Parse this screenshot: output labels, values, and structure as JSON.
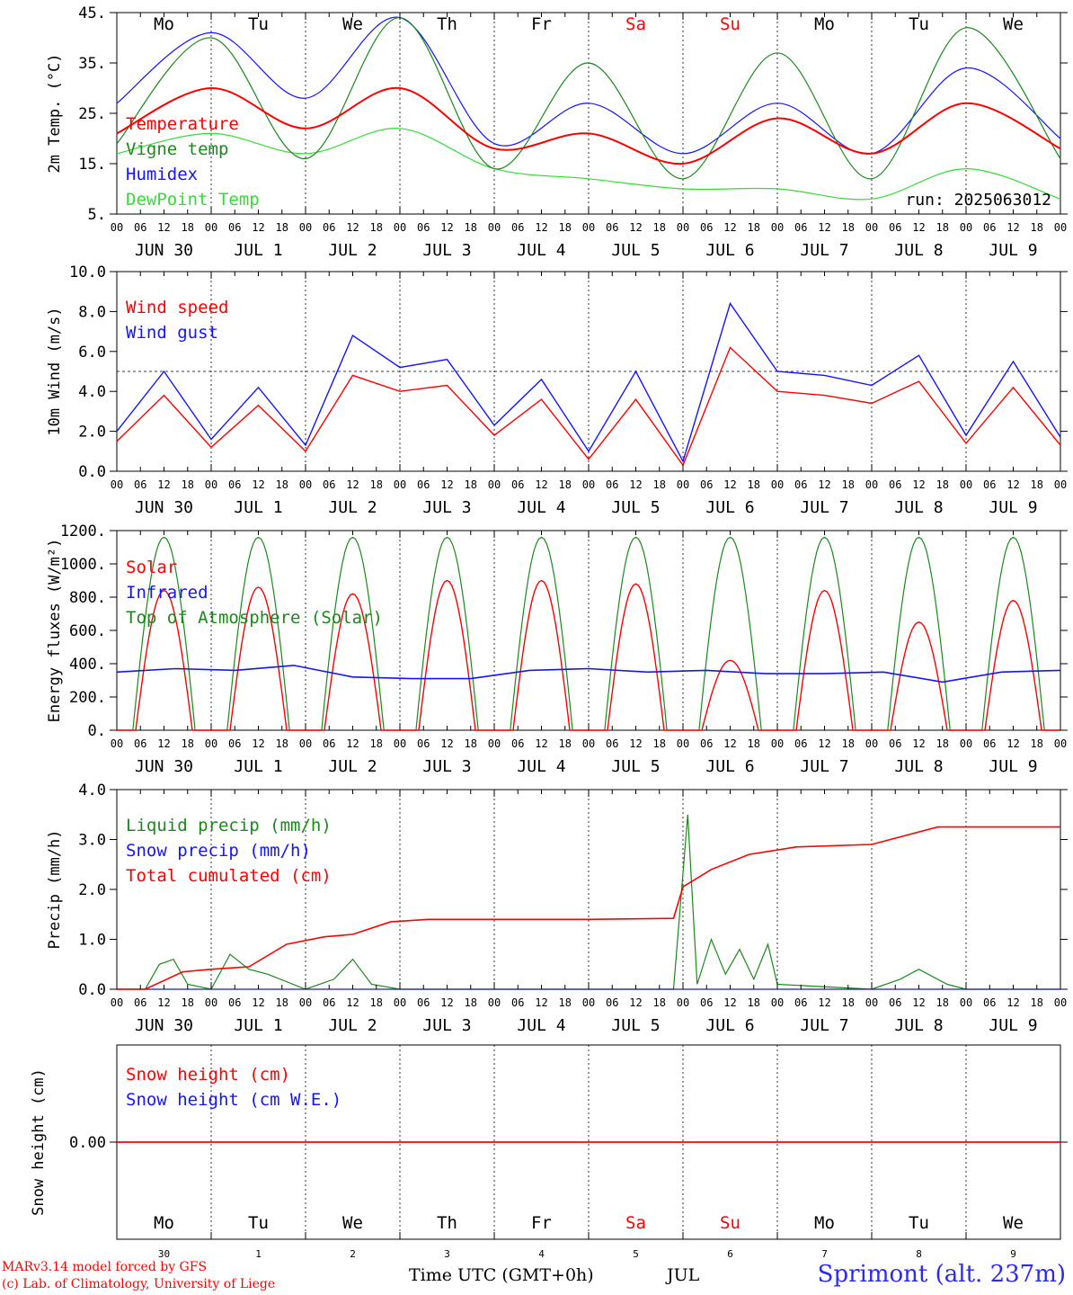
{
  "chart_data": [
    {
      "id": "temp",
      "type": "line",
      "ylabel": "2m Temp. (°C)",
      "ylim": [
        5,
        45
      ],
      "yticks": [
        "45.",
        "35.",
        "25.",
        "15.",
        "5."
      ],
      "ytick_values": [
        45,
        35,
        25,
        15,
        5
      ],
      "legend": [
        "Temperature",
        "Vigne temp",
        "Humidex",
        "DewPoint Temp"
      ],
      "annotation": "run: 2025063012",
      "day_labels": [
        "Mo",
        "Tu",
        "We",
        "Th",
        "Fr",
        "Sa",
        "Su",
        "Mo",
        "Tu",
        "We"
      ],
      "series": [
        {
          "name": "Temperature",
          "color": "#ff0000",
          "x": [
            0,
            1,
            2,
            3,
            4,
            5,
            6,
            7,
            8,
            9,
            10
          ],
          "values": [
            21,
            30,
            22,
            30,
            18,
            21,
            15,
            24,
            17,
            27,
            18
          ]
        },
        {
          "name": "Vigne temp",
          "color": "#1a8a1a",
          "x": [
            0,
            1,
            2,
            3,
            4,
            5,
            6,
            7,
            8,
            9,
            10
          ],
          "values": [
            19,
            40,
            16,
            44,
            14,
            35,
            12,
            37,
            12,
            42,
            16
          ]
        },
        {
          "name": "Humidex",
          "color": "#1414ff",
          "x": [
            0,
            1,
            2,
            3,
            4,
            5,
            6,
            7,
            8,
            9,
            10
          ],
          "values": [
            27,
            41,
            28,
            44,
            19,
            27,
            17,
            27,
            17,
            34,
            20
          ]
        },
        {
          "name": "DewPoint Temp",
          "color": "#33dd33",
          "x": [
            0,
            1,
            2,
            3,
            4,
            5,
            6,
            7,
            8,
            9,
            10
          ],
          "values": [
            17,
            21,
            17,
            22,
            14,
            12,
            10,
            10,
            8,
            14,
            8
          ]
        }
      ]
    },
    {
      "id": "wind",
      "type": "line",
      "ylabel": "10m Wind (m/s)",
      "ylim": [
        0,
        10
      ],
      "yticks": [
        "10.0",
        "8.0",
        "6.0",
        "4.0",
        "2.0",
        "0.0"
      ],
      "ytick_values": [
        10,
        8,
        6,
        4,
        2,
        0
      ],
      "reference_line": 5,
      "legend": [
        "Wind speed",
        "Wind gust"
      ],
      "series": [
        {
          "name": "Wind speed",
          "color": "#ff0000",
          "x": [
            0,
            0.5,
            1,
            1.5,
            2,
            2.5,
            3,
            3.5,
            4,
            4.5,
            5,
            5.5,
            6,
            6.5,
            7,
            7.5,
            8,
            8.5,
            9,
            9.5,
            10
          ],
          "values": [
            1.5,
            3.8,
            1.2,
            3.3,
            1.0,
            4.8,
            4.0,
            4.3,
            1.8,
            3.6,
            0.6,
            3.6,
            0.3,
            6.2,
            4.0,
            3.8,
            3.4,
            4.5,
            1.4,
            4.2,
            1.3
          ]
        },
        {
          "name": "Wind gust",
          "color": "#1414ff",
          "x": [
            0,
            0.5,
            1,
            1.5,
            2,
            2.5,
            3,
            3.5,
            4,
            4.5,
            5,
            5.5,
            6,
            6.5,
            7,
            7.5,
            8,
            8.5,
            9,
            9.5,
            10
          ],
          "values": [
            2.0,
            5.0,
            1.6,
            4.2,
            1.3,
            6.8,
            5.2,
            5.6,
            2.3,
            4.6,
            1.0,
            5.0,
            0.5,
            8.4,
            5.0,
            4.8,
            4.3,
            5.8,
            1.8,
            5.5,
            1.7
          ]
        }
      ]
    },
    {
      "id": "energy",
      "type": "line",
      "ylabel": "Energy fluxes (W/m²)",
      "ylim": [
        0,
        1200
      ],
      "yticks": [
        "1200.",
        "1000.",
        "800.",
        "600.",
        "400.",
        "200.",
        "0."
      ],
      "ytick_values": [
        1200,
        1000,
        800,
        600,
        400,
        200,
        0
      ],
      "legend": [
        "Solar",
        "Infrared",
        "Top of Atmosphere (Solar)"
      ],
      "solar_peaks": [
        840,
        860,
        820,
        900,
        900,
        880,
        420,
        840,
        650,
        780
      ],
      "toa_peak": 1160,
      "infrared_level": [
        350,
        370,
        360,
        390,
        320,
        310,
        310,
        360,
        370,
        350,
        360,
        340,
        340,
        350,
        290,
        350,
        360
      ],
      "series": [
        {
          "name": "Solar",
          "color": "#ff0000"
        },
        {
          "name": "Infrared",
          "color": "#1414ff"
        },
        {
          "name": "Top of Atmosphere (Solar)",
          "color": "#1a8a1a"
        }
      ]
    },
    {
      "id": "precip",
      "type": "line",
      "ylabel": "Precip (mm/h)",
      "ylim": [
        0,
        4
      ],
      "yticks": [
        "4.0",
        "3.0",
        "2.0",
        "1.0",
        "0.0"
      ],
      "ytick_values": [
        4,
        3,
        2,
        1,
        0
      ],
      "legend": [
        "Liquid precip (mm/h)",
        "Snow precip (mm/h)",
        "Total cumulated (cm)"
      ],
      "series": [
        {
          "name": "Liquid precip (mm/h)",
          "color": "#1a8a1a",
          "x": [
            0,
            0.3,
            0.45,
            0.6,
            0.75,
            1.0,
            1.2,
            1.4,
            1.6,
            2.0,
            2.3,
            2.5,
            2.7,
            3.0,
            4.0,
            5.0,
            5.9,
            6.05,
            6.15,
            6.3,
            6.45,
            6.6,
            6.75,
            6.9,
            7.0,
            8.0,
            8.3,
            8.5,
            8.8,
            9.0,
            10.0
          ],
          "values": [
            0,
            0,
            0.5,
            0.6,
            0.1,
            0,
            0.7,
            0.4,
            0.3,
            0,
            0.2,
            0.6,
            0.1,
            0,
            0,
            0,
            0,
            3.5,
            0.1,
            1.0,
            0.3,
            0.8,
            0.2,
            0.9,
            0.1,
            0,
            0.2,
            0.4,
            0.1,
            0,
            0
          ]
        },
        {
          "name": "Snow precip (mm/h)",
          "color": "#1414ff",
          "x": [
            0,
            10
          ],
          "values": [
            0,
            0
          ]
        },
        {
          "name": "Total cumulated (cm)",
          "color": "#ff0000",
          "x": [
            0,
            0.3,
            0.7,
            1.0,
            1.4,
            1.8,
            2.2,
            2.5,
            2.9,
            3.3,
            4.0,
            5.0,
            5.9,
            6.0,
            6.3,
            6.7,
            7.2,
            8.0,
            8.7,
            10.0
          ],
          "values": [
            0,
            0,
            0.35,
            0.4,
            0.45,
            0.9,
            1.05,
            1.1,
            1.35,
            1.4,
            1.4,
            1.4,
            1.42,
            2.05,
            2.4,
            2.7,
            2.85,
            2.9,
            3.25,
            3.25
          ]
        }
      ]
    },
    {
      "id": "snow",
      "type": "line",
      "ylabel": "Snow height (cm)",
      "yticks": [
        "0.00"
      ],
      "ytick_values": [
        0
      ],
      "legend": [
        "Snow height (cm)",
        "Snow height (cm W.E.)"
      ],
      "day_labels": [
        "Mo",
        "Tu",
        "We",
        "Th",
        "Fr",
        "Sa",
        "Su",
        "Mo",
        "Tu",
        "We"
      ],
      "day_numbers": [
        "30",
        "1",
        "2",
        "3",
        "4",
        "5",
        "6",
        "7",
        "8",
        "9"
      ],
      "series": [
        {
          "name": "Snow height (cm)",
          "color": "#ff0000",
          "x": [
            0,
            10
          ],
          "values": [
            0,
            0
          ]
        },
        {
          "name": "Snow height (cm W.E.)",
          "color": "#1414ff",
          "x": [
            0,
            10
          ],
          "values": [
            0,
            0
          ]
        }
      ]
    }
  ],
  "shared_x": {
    "hour_ticks": [
      "00",
      "06",
      "12",
      "18"
    ],
    "date_labels": [
      "JUN 30",
      "JUL  1",
      "JUL  2",
      "JUL  3",
      "JUL  4",
      "JUL  5",
      "JUL  6",
      "JUL  7",
      "JUL  8",
      "JUL  9"
    ],
    "weekend_color": "#ff0000",
    "weekend_days": [
      5,
      6
    ]
  },
  "footer": {
    "credit_line1": "MARv3.14 model forced by GFS",
    "credit_line2": "(c) Lab. of Climatology, University of Liege",
    "xlabel": "Time UTC (GMT+0h)",
    "month": "JUL",
    "station": "Sprimont (alt. 237m)"
  }
}
